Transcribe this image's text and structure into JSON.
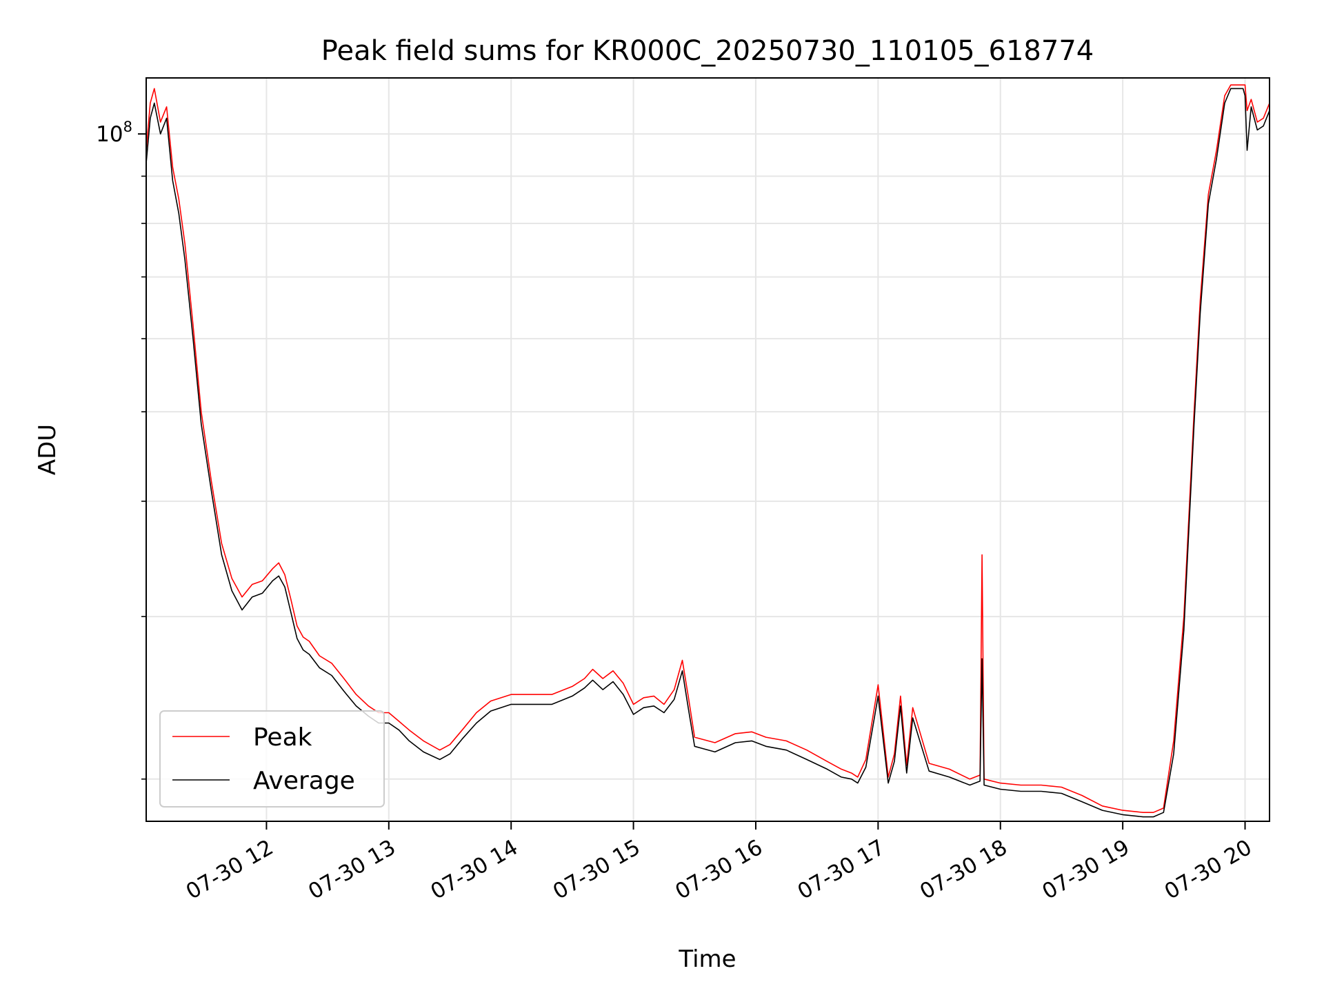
{
  "chart_data": {
    "type": "line",
    "title": "Peak field sums for KR000C_20250730_110105_618774",
    "xlabel": "Time",
    "ylabel": "ADU",
    "y_scale": "log",
    "ylim": [
      18000000,
      115000000
    ],
    "y_tick_labels": [
      {
        "value": 100000000,
        "base": "10",
        "exp": "8"
      }
    ],
    "y_minor_ticks": [
      20000000,
      30000000,
      40000000,
      50000000,
      60000000,
      70000000,
      80000000,
      90000000
    ],
    "xlim": [
      "2025-07-30 11:01",
      "2025-07-30 20:12"
    ],
    "x_ticks": [
      {
        "t": "2025-07-30 12:00",
        "label": "07-30 12"
      },
      {
        "t": "2025-07-30 13:00",
        "label": "07-30 13"
      },
      {
        "t": "2025-07-30 14:00",
        "label": "07-30 14"
      },
      {
        "t": "2025-07-30 15:00",
        "label": "07-30 15"
      },
      {
        "t": "2025-07-30 16:00",
        "label": "07-30 16"
      },
      {
        "t": "2025-07-30 17:00",
        "label": "07-30 17"
      },
      {
        "t": "2025-07-30 18:00",
        "label": "07-30 18"
      },
      {
        "t": "2025-07-30 19:00",
        "label": "07-30 19"
      },
      {
        "t": "2025-07-30 20:00",
        "label": "07-30 20"
      }
    ],
    "grid": true,
    "legend": {
      "placement": "lower-left"
    },
    "colors": {
      "Peak": "#ff0000",
      "Average": "#000000",
      "grid": "#e6e6e6"
    },
    "series": [
      {
        "name": "Peak",
        "x": [
          "2025-07-30 11:01",
          "2025-07-30 11:03",
          "2025-07-30 11:05",
          "2025-07-30 11:08",
          "2025-07-30 11:11",
          "2025-07-30 11:14",
          "2025-07-30 11:17",
          "2025-07-30 11:20",
          "2025-07-30 11:24",
          "2025-07-30 11:28",
          "2025-07-30 11:33",
          "2025-07-30 11:38",
          "2025-07-30 11:43",
          "2025-07-30 11:48",
          "2025-07-30 11:53",
          "2025-07-30 11:58",
          "2025-07-30 12:03",
          "2025-07-30 12:06",
          "2025-07-30 12:09",
          "2025-07-30 12:12",
          "2025-07-30 12:15",
          "2025-07-30 12:18",
          "2025-07-30 12:21",
          "2025-07-30 12:26",
          "2025-07-30 12:32",
          "2025-07-30 12:38",
          "2025-07-30 12:44",
          "2025-07-30 12:50",
          "2025-07-30 12:55",
          "2025-07-30 13:00",
          "2025-07-30 13:05",
          "2025-07-30 13:10",
          "2025-07-30 13:17",
          "2025-07-30 13:25",
          "2025-07-30 13:30",
          "2025-07-30 13:36",
          "2025-07-30 13:43",
          "2025-07-30 13:50",
          "2025-07-30 14:00",
          "2025-07-30 14:10",
          "2025-07-30 14:20",
          "2025-07-30 14:30",
          "2025-07-30 14:36",
          "2025-07-30 14:40",
          "2025-07-30 14:45",
          "2025-07-30 14:50",
          "2025-07-30 14:55",
          "2025-07-30 15:00",
          "2025-07-30 15:05",
          "2025-07-30 15:10",
          "2025-07-30 15:15",
          "2025-07-30 15:20",
          "2025-07-30 15:24",
          "2025-07-30 15:27",
          "2025-07-30 15:30",
          "2025-07-30 15:40",
          "2025-07-30 15:50",
          "2025-07-30 15:58",
          "2025-07-30 16:05",
          "2025-07-30 16:15",
          "2025-07-30 16:25",
          "2025-07-30 16:35",
          "2025-07-30 16:42",
          "2025-07-30 16:47",
          "2025-07-30 16:50",
          "2025-07-30 16:54",
          "2025-07-30 17:00",
          "2025-07-30 17:05",
          "2025-07-30 17:08",
          "2025-07-30 17:11",
          "2025-07-30 17:14",
          "2025-07-30 17:17",
          "2025-07-30 17:25",
          "2025-07-30 17:35",
          "2025-07-30 17:45",
          "2025-07-30 17:50",
          "2025-07-30 17:51",
          "2025-07-30 17:52",
          "2025-07-30 18:00",
          "2025-07-30 18:10",
          "2025-07-30 18:20",
          "2025-07-30 18:30",
          "2025-07-30 18:40",
          "2025-07-30 18:50",
          "2025-07-30 19:00",
          "2025-07-30 19:10",
          "2025-07-30 19:15",
          "2025-07-30 19:20",
          "2025-07-30 19:25",
          "2025-07-30 19:30",
          "2025-07-30 19:35",
          "2025-07-30 19:38",
          "2025-07-30 19:42",
          "2025-07-30 19:46",
          "2025-07-30 19:50",
          "2025-07-30 19:53",
          "2025-07-30 19:56",
          "2025-07-30 19:59",
          "2025-07-30 20:00",
          "2025-07-30 20:01",
          "2025-07-30 20:03",
          "2025-07-30 20:06",
          "2025-07-30 20:09",
          "2025-07-30 20:12"
        ],
        "y": [
          96000000,
          108000000,
          112000000,
          103000000,
          107000000,
          92000000,
          85000000,
          76000000,
          62000000,
          50000000,
          42000000,
          36000000,
          33000000,
          31500000,
          32500000,
          32800000,
          33800000,
          34300000,
          33300000,
          31300000,
          29300000,
          28500000,
          28200000,
          27200000,
          26700000,
          25700000,
          24700000,
          24000000,
          23600000,
          23600000,
          23100000,
          22600000,
          22000000,
          21500000,
          21800000,
          22600000,
          23600000,
          24300000,
          24700000,
          24700000,
          24700000,
          25200000,
          25700000,
          26300000,
          25700000,
          26200000,
          25400000,
          24100000,
          24500000,
          24600000,
          24100000,
          25000000,
          26900000,
          24500000,
          22200000,
          21900000,
          22400000,
          22500000,
          22200000,
          22000000,
          21500000,
          20900000,
          20500000,
          20300000,
          20100000,
          21000000,
          25300000,
          20100000,
          21300000,
          24600000,
          20700000,
          23900000,
          20800000,
          20500000,
          20000000,
          20200000,
          35000000,
          20000000,
          19800000,
          19700000,
          19700000,
          19600000,
          19200000,
          18700000,
          18500000,
          18400000,
          18400000,
          18600000,
          22000000,
          30000000,
          50000000,
          66000000,
          86000000,
          96000000,
          110000000,
          113000000,
          113000000,
          113000000,
          113000000,
          106000000,
          109000000,
          103000000,
          104000000,
          108000000
        ]
      },
      {
        "name": "Average",
        "x": [
          "2025-07-30 11:01",
          "2025-07-30 11:03",
          "2025-07-30 11:05",
          "2025-07-30 11:08",
          "2025-07-30 11:11",
          "2025-07-30 11:14",
          "2025-07-30 11:17",
          "2025-07-30 11:20",
          "2025-07-30 11:24",
          "2025-07-30 11:28",
          "2025-07-30 11:33",
          "2025-07-30 11:38",
          "2025-07-30 11:43",
          "2025-07-30 11:48",
          "2025-07-30 11:53",
          "2025-07-30 11:58",
          "2025-07-30 12:03",
          "2025-07-30 12:06",
          "2025-07-30 12:09",
          "2025-07-30 12:12",
          "2025-07-30 12:15",
          "2025-07-30 12:18",
          "2025-07-30 12:21",
          "2025-07-30 12:26",
          "2025-07-30 12:32",
          "2025-07-30 12:38",
          "2025-07-30 12:44",
          "2025-07-30 12:50",
          "2025-07-30 12:55",
          "2025-07-30 13:00",
          "2025-07-30 13:05",
          "2025-07-30 13:10",
          "2025-07-30 13:17",
          "2025-07-30 13:25",
          "2025-07-30 13:30",
          "2025-07-30 13:36",
          "2025-07-30 13:43",
          "2025-07-30 13:50",
          "2025-07-30 14:00",
          "2025-07-30 14:10",
          "2025-07-30 14:20",
          "2025-07-30 14:30",
          "2025-07-30 14:36",
          "2025-07-30 14:40",
          "2025-07-30 14:45",
          "2025-07-30 14:50",
          "2025-07-30 14:55",
          "2025-07-30 15:00",
          "2025-07-30 15:05",
          "2025-07-30 15:10",
          "2025-07-30 15:15",
          "2025-07-30 15:20",
          "2025-07-30 15:24",
          "2025-07-30 15:27",
          "2025-07-30 15:30",
          "2025-07-30 15:40",
          "2025-07-30 15:50",
          "2025-07-30 15:58",
          "2025-07-30 16:05",
          "2025-07-30 16:15",
          "2025-07-30 16:25",
          "2025-07-30 16:35",
          "2025-07-30 16:42",
          "2025-07-30 16:47",
          "2025-07-30 16:50",
          "2025-07-30 16:54",
          "2025-07-30 17:00",
          "2025-07-30 17:05",
          "2025-07-30 17:08",
          "2025-07-30 17:11",
          "2025-07-30 17:14",
          "2025-07-30 17:17",
          "2025-07-30 17:25",
          "2025-07-30 17:35",
          "2025-07-30 17:45",
          "2025-07-30 17:50",
          "2025-07-30 17:51",
          "2025-07-30 17:52",
          "2025-07-30 18:00",
          "2025-07-30 18:10",
          "2025-07-30 18:20",
          "2025-07-30 18:30",
          "2025-07-30 18:40",
          "2025-07-30 18:50",
          "2025-07-30 19:00",
          "2025-07-30 19:10",
          "2025-07-30 19:15",
          "2025-07-30 19:20",
          "2025-07-30 19:25",
          "2025-07-30 19:30",
          "2025-07-30 19:35",
          "2025-07-30 19:38",
          "2025-07-30 19:42",
          "2025-07-30 19:46",
          "2025-07-30 19:50",
          "2025-07-30 19:53",
          "2025-07-30 19:56",
          "2025-07-30 19:59",
          "2025-07-30 20:00",
          "2025-07-30 20:01",
          "2025-07-30 20:03",
          "2025-07-30 20:06",
          "2025-07-30 20:09",
          "2025-07-30 20:12"
        ],
        "y": [
          93000000,
          104000000,
          108000000,
          100000000,
          104000000,
          89000000,
          82000000,
          73000000,
          60000000,
          48500000,
          41000000,
          35000000,
          32000000,
          30500000,
          31500000,
          31800000,
          32800000,
          33200000,
          32300000,
          30300000,
          28400000,
          27600000,
          27300000,
          26400000,
          25900000,
          24900000,
          24000000,
          23400000,
          23000000,
          23000000,
          22600000,
          22000000,
          21400000,
          21000000,
          21300000,
          22100000,
          23000000,
          23700000,
          24100000,
          24100000,
          24100000,
          24600000,
          25100000,
          25600000,
          25000000,
          25500000,
          24700000,
          23500000,
          23900000,
          24000000,
          23600000,
          24400000,
          26200000,
          23800000,
          21700000,
          21400000,
          21900000,
          22000000,
          21700000,
          21500000,
          21000000,
          20500000,
          20100000,
          20000000,
          19800000,
          20600000,
          24600000,
          19800000,
          20900000,
          24000000,
          20300000,
          23300000,
          20400000,
          20100000,
          19700000,
          19900000,
          27000000,
          19700000,
          19500000,
          19400000,
          19400000,
          19300000,
          18900000,
          18500000,
          18300000,
          18200000,
          18200000,
          18400000,
          21300000,
          29000000,
          48500000,
          64000000,
          84000000,
          94000000,
          108000000,
          112000000,
          112000000,
          112000000,
          110000000,
          96000000,
          107000000,
          101000000,
          102000000,
          106000000
        ]
      }
    ]
  }
}
